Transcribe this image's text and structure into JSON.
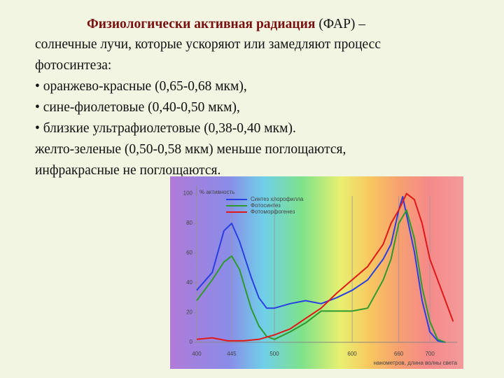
{
  "text": {
    "title_bold": "Физиологически активная радиация",
    "title_rest": "(ФАР) –",
    "lines": [
      "солнечные лучи, которые ускоряют или замедляют процесс",
      "фотосинтеза:",
      "• оранжево-красные (0,65-0,68 мкм),",
      "• сине-фиолетовые (0,40-0,50 мкм),",
      "• близкие ультрафиолетовые (0,38-0,40 мкм).",
      "желто-зеленые (0,50-0,58 мкм) меньше поглощаются,",
      "инфракрасные не поглощаются."
    ]
  },
  "chart_data": {
    "type": "line",
    "y_label": "% активность",
    "x_label": "нанометров, длина волны света",
    "xlim": [
      400,
      735
    ],
    "ylim": [
      0,
      105
    ],
    "xticks": [
      400,
      445,
      500,
      600,
      660,
      700
    ],
    "yticks": [
      0,
      20,
      40,
      60,
      80,
      100
    ],
    "grid": true,
    "series": [
      {
        "name": "Синтез хлорофилла",
        "color": "#2a3fe0",
        "x": [
          400,
          420,
          435,
          445,
          455,
          470,
          480,
          490,
          500,
          520,
          540,
          560,
          580,
          600,
          620,
          640,
          650,
          660,
          665,
          680,
          690,
          700,
          710,
          720
        ],
        "values": [
          35,
          47,
          75,
          80,
          68,
          44,
          30,
          23,
          23,
          26,
          28,
          26,
          30,
          35,
          42,
          56,
          66,
          89,
          98,
          61,
          28,
          7,
          1,
          0
        ]
      },
      {
        "name": "Фотосинтез",
        "color": "#2e9a2e",
        "x": [
          400,
          420,
          435,
          445,
          455,
          470,
          480,
          490,
          500,
          520,
          540,
          560,
          580,
          600,
          620,
          640,
          650,
          660,
          670,
          680,
          690,
          700,
          710,
          720
        ],
        "values": [
          28,
          42,
          54,
          58,
          49,
          23,
          11,
          4,
          2,
          7,
          13,
          21,
          21,
          21,
          23,
          42,
          56,
          80,
          89,
          70,
          37,
          14,
          2,
          0
        ]
      },
      {
        "name": "Фотоморфогенез",
        "color": "#e01818",
        "x": [
          400,
          420,
          440,
          460,
          480,
          500,
          520,
          540,
          560,
          580,
          600,
          620,
          640,
          650,
          660,
          670,
          680,
          690,
          700,
          720,
          730
        ],
        "values": [
          2,
          3,
          1,
          1,
          2,
          5,
          9,
          16,
          23,
          33,
          42,
          51,
          66,
          80,
          89,
          100,
          96,
          80,
          56,
          28,
          14
        ]
      }
    ]
  }
}
